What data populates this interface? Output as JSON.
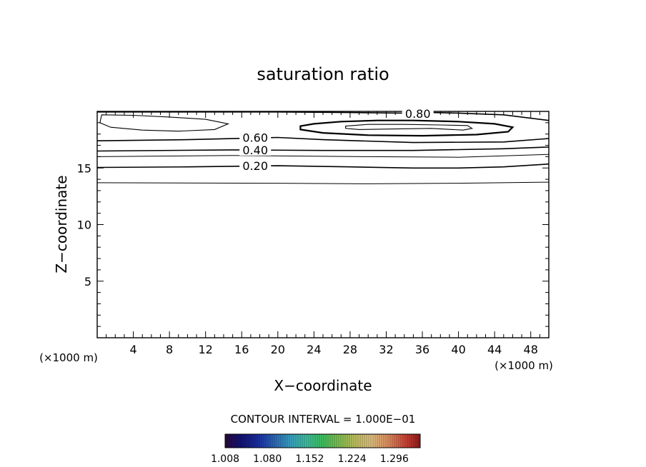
{
  "chart_data": {
    "type": "contour",
    "title": "saturation ratio",
    "xlabel": "X−coordinate",
    "ylabel": "Z−coordinate",
    "x_unit_left": "(×1000 m)",
    "x_unit_right": "(×1000 m)",
    "xlim": [
      0,
      50
    ],
    "ylim": [
      0,
      20
    ],
    "xticks": [
      4,
      8,
      12,
      16,
      20,
      24,
      28,
      32,
      36,
      40,
      44,
      48
    ],
    "xtick_labels": [
      "4",
      "8",
      "12",
      "16",
      "20",
      "24",
      "28",
      "32",
      "36",
      "40",
      "44",
      "48"
    ],
    "yticks": [
      5,
      10,
      15
    ],
    "ytick_labels": [
      "5",
      "10",
      "15"
    ],
    "contour_interval_text": "CONTOUR INTERVAL = 1.000E−01",
    "contours": [
      {
        "label": "0.20",
        "label_x": 17.5,
        "label_y": 15.2,
        "points": [
          [
            0,
            15.05
          ],
          [
            10,
            15.1
          ],
          [
            20,
            15.2
          ],
          [
            28,
            15.1
          ],
          [
            35,
            15.0
          ],
          [
            40,
            15.0
          ],
          [
            45,
            15.1
          ],
          [
            50,
            15.35
          ]
        ]
      },
      {
        "label": "0.40",
        "label_x": 17.5,
        "label_y": 16.6,
        "points": [
          [
            0,
            16.5
          ],
          [
            15,
            16.6
          ],
          [
            25,
            16.55
          ],
          [
            35,
            16.55
          ],
          [
            45,
            16.7
          ],
          [
            50,
            16.85
          ]
        ]
      },
      {
        "label": "0.60",
        "label_x": 17.5,
        "label_y": 17.7,
        "points": [
          [
            0,
            17.4
          ],
          [
            10,
            17.5
          ],
          [
            20,
            17.7
          ],
          [
            25,
            17.5
          ],
          [
            35,
            17.25
          ],
          [
            45,
            17.3
          ],
          [
            50,
            17.6
          ]
        ]
      },
      {
        "label": "0.80",
        "label_x": 35.5,
        "label_y": 19.8,
        "points": [
          [
            0,
            19.95
          ],
          [
            20,
            19.95
          ],
          [
            28,
            19.9
          ],
          [
            34,
            19.85
          ],
          [
            37,
            19.9
          ],
          [
            40,
            19.85
          ],
          [
            45,
            19.7
          ],
          [
            50,
            19.2
          ]
        ]
      }
    ],
    "unlabeled_lines": [
      {
        "points": [
          [
            0,
            13.7
          ],
          [
            20,
            13.65
          ],
          [
            30,
            13.6
          ],
          [
            40,
            13.65
          ],
          [
            50,
            13.75
          ]
        ]
      },
      {
        "points": [
          [
            0,
            16.0
          ],
          [
            15,
            16.1
          ],
          [
            30,
            16.0
          ],
          [
            40,
            15.95
          ],
          [
            50,
            16.2
          ]
        ]
      }
    ],
    "closed_contours": [
      {
        "points": [
          [
            0.5,
            19.7
          ],
          [
            4,
            19.65
          ],
          [
            8,
            19.5
          ],
          [
            12,
            19.3
          ],
          [
            14.5,
            18.9
          ],
          [
            13,
            18.4
          ],
          [
            9,
            18.25
          ],
          [
            5,
            18.35
          ],
          [
            1.5,
            18.6
          ],
          [
            0.3,
            19.0
          ]
        ]
      },
      {
        "points": [
          [
            22.5,
            18.7
          ],
          [
            24,
            18.9
          ],
          [
            27,
            19.1
          ],
          [
            31,
            19.2
          ],
          [
            35,
            19.2
          ],
          [
            40,
            19.1
          ],
          [
            44,
            18.9
          ],
          [
            46,
            18.6
          ],
          [
            45.5,
            18.2
          ],
          [
            42,
            17.95
          ],
          [
            36,
            17.85
          ],
          [
            30,
            17.9
          ],
          [
            25,
            18.1
          ],
          [
            22.5,
            18.4
          ]
        ]
      },
      {
        "points": [
          [
            27.5,
            18.7
          ],
          [
            30,
            18.85
          ],
          [
            34,
            18.85
          ],
          [
            38,
            18.8
          ],
          [
            41,
            18.75
          ],
          [
            41.5,
            18.5
          ],
          [
            40.5,
            18.35
          ],
          [
            37,
            18.5
          ],
          [
            33,
            18.45
          ],
          [
            29,
            18.4
          ],
          [
            27.5,
            18.5
          ]
        ]
      }
    ],
    "colorbar": {
      "min": 1.008,
      "max": 1.34,
      "tick_labels": [
        "1.008",
        "1.080",
        "1.152",
        "1.224",
        "1.296"
      ],
      "colors": [
        "#2a0a3a",
        "#12127a",
        "#1a2ea0",
        "#2a66b8",
        "#3aa0c0",
        "#3ec0a0",
        "#40c060",
        "#80c050",
        "#c0c060",
        "#e0c080",
        "#e09060",
        "#d04a3a",
        "#901a1a"
      ]
    }
  }
}
